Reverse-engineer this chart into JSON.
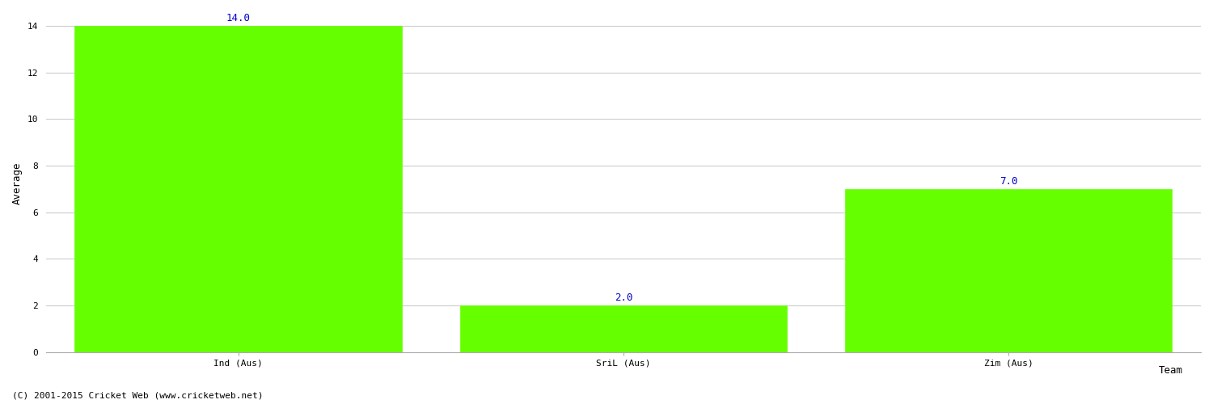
{
  "categories": [
    "Ind (Aus)",
    "SriL (Aus)",
    "Zim (Aus)"
  ],
  "values": [
    14.0,
    2.0,
    7.0
  ],
  "bar_color": "#66ff00",
  "bar_edge_color": "#66ff00",
  "label_color": "#0000cc",
  "ylabel": "Average",
  "xlabel": "Team",
  "ylim": [
    0,
    14
  ],
  "yticks": [
    0,
    2,
    4,
    6,
    8,
    10,
    12,
    14
  ],
  "grid_color": "#cccccc",
  "background_color": "#ffffff",
  "annotation_fontsize": 9,
  "axis_label_fontsize": 9,
  "tick_label_fontsize": 8,
  "copyright": "(C) 2001-2015 Cricket Web (www.cricketweb.net)"
}
